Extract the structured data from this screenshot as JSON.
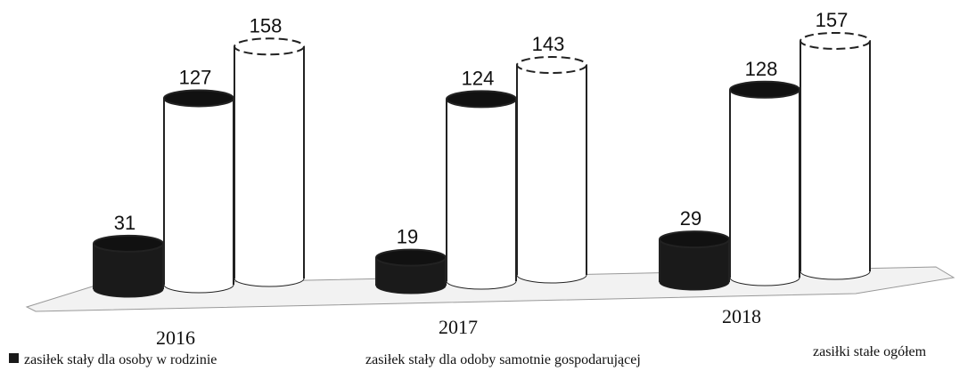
{
  "chart_data": {
    "type": "cylinder",
    "categories": [
      "2016",
      "2017",
      "2018"
    ],
    "series": [
      {
        "name": "zasiłek stały dla osoby w rodzinie",
        "color": "#1a1a1a",
        "values": [
          31,
          19,
          29
        ]
      },
      {
        "name": "zasiłek stały dla odoby samotnie gospodarującej",
        "color": "#ffffff",
        "values": [
          127,
          124,
          128
        ]
      },
      {
        "name": "zasiłki stałe ogółem",
        "color": "#ffffff",
        "values": [
          158,
          143,
          157
        ]
      }
    ]
  }
}
